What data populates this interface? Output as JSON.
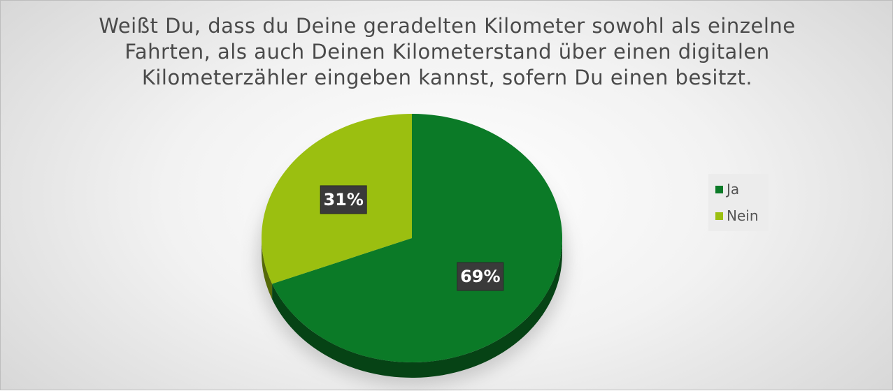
{
  "chart_data": {
    "type": "pie",
    "title": "Weißt Du, dass du Deine geradelten Kilometer sowohl als einzelne Fahrten, als auch Deinen Kilometerstand über einen digitalen Kilometerzähler eingeben kannst, sofern Du einen besitzt.",
    "categories": [
      "Ja",
      "Nein"
    ],
    "values": [
      69,
      31
    ],
    "labels": [
      "69%",
      "31%"
    ],
    "colors": [
      "#0b7a27",
      "#9bbf10"
    ],
    "legend_position": "right",
    "three_d": true
  }
}
